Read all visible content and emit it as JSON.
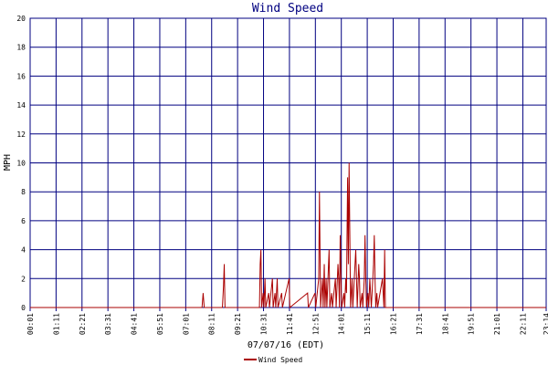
{
  "chart_data": {
    "type": "line",
    "title": "Wind Speed",
    "xlabel": "07/07/16 (EDT)",
    "ylabel": "MPH",
    "ylim": [
      0,
      20
    ],
    "y_ticks": [
      "0",
      "2",
      "4",
      "6",
      "8",
      "10",
      "12",
      "14",
      "16",
      "18",
      "20"
    ],
    "x_ticks": [
      "00:01",
      "01:11",
      "02:21",
      "03:31",
      "04:41",
      "05:51",
      "07:01",
      "08:11",
      "09:21",
      "10:31",
      "11:41",
      "12:51",
      "14:01",
      "15:11",
      "16:21",
      "17:31",
      "18:41",
      "19:51",
      "21:01",
      "22:11",
      "23:14"
    ],
    "x_range_minutes": [
      1,
      1394
    ],
    "grid": true,
    "legend_position": "bottom-center",
    "series": [
      {
        "name": "Wind Speed",
        "color": "#aa0000",
        "points": [
          [
            1,
            0
          ],
          [
            465,
            0
          ],
          [
            468,
            1
          ],
          [
            471,
            0
          ],
          [
            520,
            0
          ],
          [
            523,
            1.5
          ],
          [
            525,
            3
          ],
          [
            527,
            0
          ],
          [
            620,
            0
          ],
          [
            622,
            3
          ],
          [
            624,
            4
          ],
          [
            626,
            0
          ],
          [
            630,
            1
          ],
          [
            632,
            0
          ],
          [
            635,
            2
          ],
          [
            637,
            0
          ],
          [
            645,
            1
          ],
          [
            647,
            0
          ],
          [
            655,
            2
          ],
          [
            657,
            0
          ],
          [
            662,
            1
          ],
          [
            664,
            0
          ],
          [
            668,
            2
          ],
          [
            670,
            0
          ],
          [
            680,
            1
          ],
          [
            682,
            0
          ],
          [
            700,
            2
          ],
          [
            702,
            0
          ],
          [
            750,
            1
          ],
          [
            752,
            0
          ],
          [
            770,
            1
          ],
          [
            772,
            0
          ],
          [
            780,
            2
          ],
          [
            782,
            8
          ],
          [
            785,
            0
          ],
          [
            790,
            2
          ],
          [
            792,
            0
          ],
          [
            795,
            3
          ],
          [
            797,
            0
          ],
          [
            800,
            2
          ],
          [
            802,
            0
          ],
          [
            808,
            4
          ],
          [
            810,
            0
          ],
          [
            815,
            1
          ],
          [
            817,
            0
          ],
          [
            825,
            2
          ],
          [
            827,
            0
          ],
          [
            832,
            3
          ],
          [
            834,
            2
          ],
          [
            836,
            0
          ],
          [
            838,
            5
          ],
          [
            840,
            2
          ],
          [
            842,
            0
          ],
          [
            848,
            1
          ],
          [
            850,
            0
          ],
          [
            853,
            2
          ],
          [
            855,
            1
          ],
          [
            857,
            6.5
          ],
          [
            858,
            9
          ],
          [
            860,
            3
          ],
          [
            862,
            10
          ],
          [
            864,
            5
          ],
          [
            866,
            0
          ],
          [
            870,
            2
          ],
          [
            872,
            0
          ],
          [
            880,
            4
          ],
          [
            882,
            2
          ],
          [
            884,
            0
          ],
          [
            888,
            3
          ],
          [
            890,
            2
          ],
          [
            892,
            0
          ],
          [
            897,
            1
          ],
          [
            899,
            0
          ],
          [
            903,
            2
          ],
          [
            905,
            5
          ],
          [
            907,
            2
          ],
          [
            909,
            0
          ],
          [
            913,
            1
          ],
          [
            915,
            0
          ],
          [
            918,
            2
          ],
          [
            920,
            1
          ],
          [
            922,
            0
          ],
          [
            928,
            3
          ],
          [
            930,
            5
          ],
          [
            932,
            2
          ],
          [
            934,
            0
          ],
          [
            937,
            1
          ],
          [
            939,
            0
          ],
          [
            952,
            2
          ],
          [
            954,
            1
          ],
          [
            956,
            0
          ],
          [
            958,
            4
          ],
          [
            960,
            0
          ],
          [
            1394,
            0
          ]
        ]
      }
    ]
  }
}
